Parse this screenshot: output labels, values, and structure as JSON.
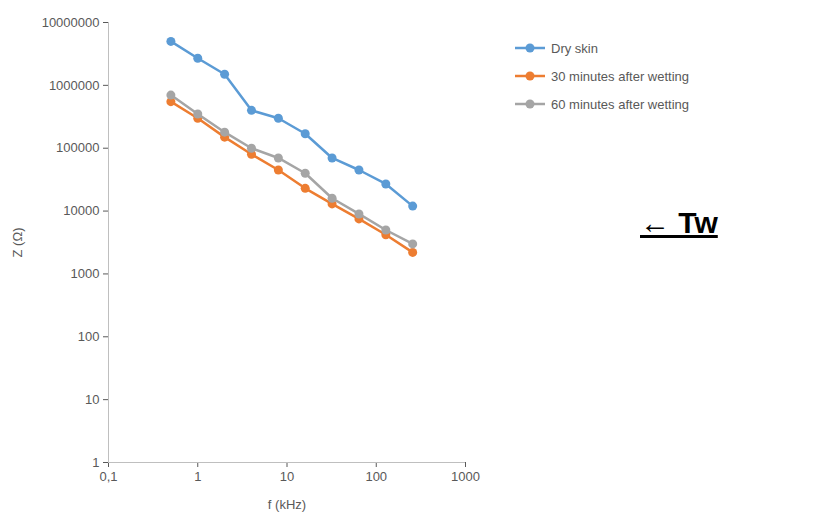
{
  "chart_data": {
    "type": "line",
    "x_label": "f (kHz)",
    "y_label": "Z (Ω)",
    "log": true,
    "grid": false,
    "legend": "right",
    "marker": "circle",
    "x": [
      0.5,
      1,
      2,
      4,
      8,
      16,
      32,
      64,
      128,
      256
    ],
    "xlim": [
      0.1,
      1000
    ],
    "xticks": [
      {
        "value": 0.1,
        "label": "0,1"
      },
      1,
      10,
      100,
      1000
    ],
    "ylim": [
      1,
      10000000
    ],
    "yticks": [
      1,
      10,
      100,
      1000,
      10000,
      100000,
      1000000,
      10000000
    ],
    "series": [
      {
        "name": "Dry skin",
        "color": "#5b9bd5",
        "values": [
          5000000,
          2700000,
          1500000,
          400000,
          300000,
          170000,
          70000,
          45000,
          27000,
          12000
        ]
      },
      {
        "name": "30 minutes after wetting",
        "color": "#ed7d31",
        "values": [
          550000,
          300000,
          150000,
          80000,
          45000,
          23000,
          13000,
          7500,
          4200,
          2200
        ]
      },
      {
        "name": "60 minutes after wetting",
        "color": "#a5a5a5",
        "values": [
          700000,
          350000,
          180000,
          100000,
          70000,
          40000,
          16000,
          9000,
          5000,
          3000
        ]
      }
    ],
    "annotations": [
      "← Tw"
    ]
  }
}
